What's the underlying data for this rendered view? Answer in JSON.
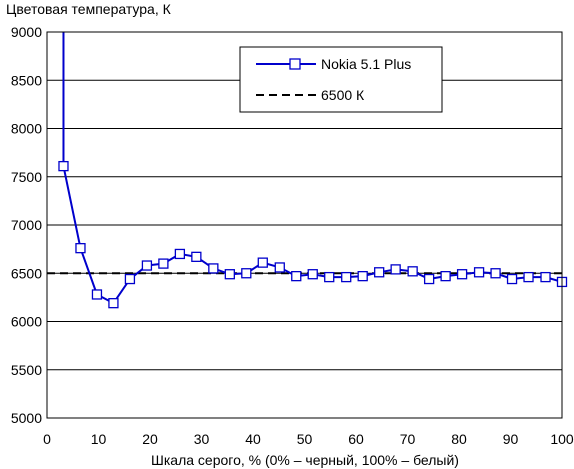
{
  "chart_data": {
    "type": "line",
    "title": "",
    "ylabel": "Цветовая температура, К",
    "xlabel": "Шкала серого, % (0% – черный, 100% – белый)",
    "xlim": [
      0,
      100
    ],
    "ylim": [
      5000,
      9000
    ],
    "x_ticks": [
      0,
      10,
      20,
      30,
      40,
      50,
      60,
      70,
      80,
      90,
      100
    ],
    "y_ticks": [
      5000,
      5500,
      6000,
      6500,
      7000,
      7500,
      8000,
      8500,
      9000
    ],
    "grid": "horizontal",
    "legend_position": "top-center",
    "series": [
      {
        "name": "Nokia 5.1 Plus",
        "color": "#0000cc",
        "marker": "open-square",
        "x": [
          3.2,
          6.5,
          9.7,
          12.9,
          16.1,
          19.4,
          22.6,
          25.8,
          29.0,
          32.3,
          35.5,
          38.7,
          41.9,
          45.2,
          48.4,
          51.6,
          54.8,
          58.1,
          61.3,
          64.5,
          67.7,
          71.0,
          74.2,
          77.4,
          80.6,
          83.9,
          87.1,
          90.3,
          93.5,
          96.8,
          100
        ],
        "y": [
          7610,
          6760,
          6280,
          6190,
          6440,
          6580,
          6600,
          6700,
          6670,
          6550,
          6490,
          6500,
          6610,
          6560,
          6470,
          6490,
          6460,
          6460,
          6470,
          6510,
          6540,
          6520,
          6440,
          6470,
          6490,
          6510,
          6500,
          6440,
          6460,
          6460,
          6410
        ],
        "before_first_point": "the line rises from above 9000 at 3.2% down to the first marker"
      },
      {
        "name": "6500 К",
        "color": "#000000",
        "style": "dashed",
        "x": [
          0,
          100
        ],
        "y": [
          6500,
          6500
        ]
      }
    ]
  }
}
